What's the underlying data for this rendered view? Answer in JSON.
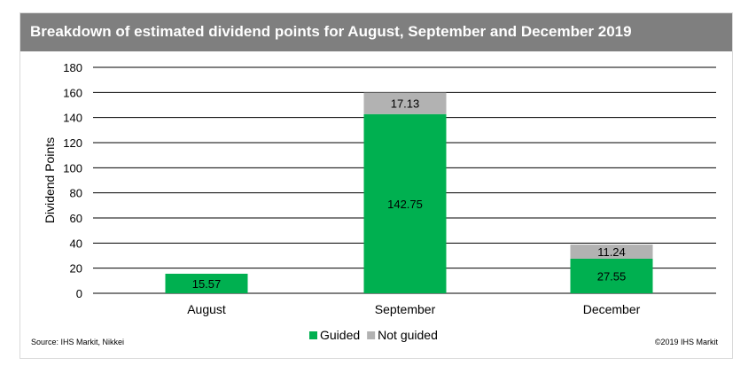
{
  "title": "Breakdown of estimated dividend points for August, September and December 2019",
  "source": "Source: IHS Markit, Nikkei",
  "copyright": "©2019 IHS Markit",
  "colors": {
    "guided": "#00b050",
    "not_guided": "#b2b2b2",
    "title_bg": "#7f7f7f"
  },
  "chart_data": {
    "type": "bar",
    "stacked": true,
    "categories": [
      "August",
      "September",
      "December"
    ],
    "series": [
      {
        "name": "Guided",
        "values": [
          15.57,
          142.75,
          27.55
        ],
        "labels": [
          "15.57",
          "142.75",
          "27.55"
        ]
      },
      {
        "name": "Not guided",
        "values": [
          0,
          17.13,
          11.24
        ],
        "labels": [
          "",
          "17.13",
          "11.24"
        ]
      }
    ],
    "ylabel": "Dividend Points",
    "ylim": [
      0,
      180
    ],
    "yticks": [
      "0",
      "20",
      "40",
      "60",
      "80",
      "100",
      "120",
      "140",
      "160",
      "180"
    ],
    "grid": true,
    "legend": "bottom"
  }
}
